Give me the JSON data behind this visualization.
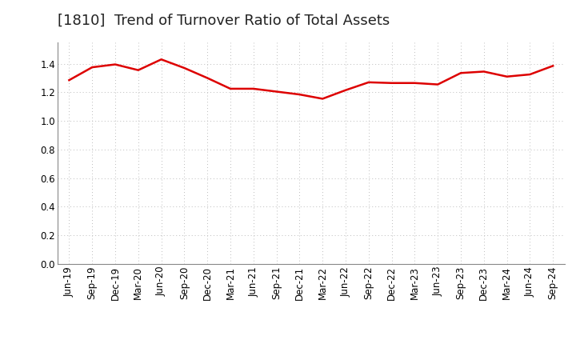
{
  "title": "[1810]  Trend of Turnover Ratio of Total Assets",
  "x_labels": [
    "Jun-19",
    "Sep-19",
    "Dec-19",
    "Mar-20",
    "Jun-20",
    "Sep-20",
    "Dec-20",
    "Mar-21",
    "Jun-21",
    "Sep-21",
    "Dec-21",
    "Mar-22",
    "Jun-22",
    "Sep-22",
    "Dec-22",
    "Mar-23",
    "Jun-23",
    "Sep-23",
    "Dec-23",
    "Mar-24",
    "Jun-24",
    "Sep-24"
  ],
  "y_values": [
    1.285,
    1.375,
    1.395,
    1.355,
    1.43,
    1.37,
    1.3,
    1.225,
    1.225,
    1.205,
    1.185,
    1.155,
    1.215,
    1.27,
    1.265,
    1.265,
    1.255,
    1.335,
    1.345,
    1.31,
    1.325,
    1.385
  ],
  "line_color": "#dd0000",
  "line_width": 1.8,
  "ylim": [
    0.0,
    1.55
  ],
  "yticks": [
    0.0,
    0.2,
    0.4,
    0.6,
    0.8,
    1.0,
    1.2,
    1.4
  ],
  "grid_color": "#bbbbbb",
  "bg_color": "#ffffff",
  "title_fontsize": 13,
  "tick_fontsize": 8.5,
  "title_color": "#222222"
}
